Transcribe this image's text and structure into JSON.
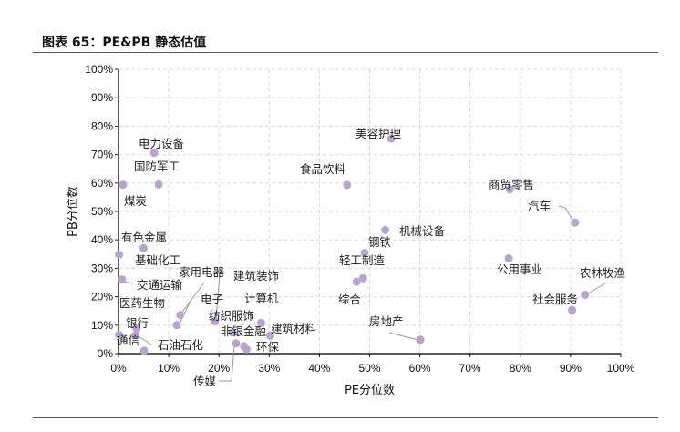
{
  "title": "图表 65：PE&PB 静态估值",
  "chart_data": {
    "type": "scatter",
    "title": "图表 65：PE&PB 静态估值",
    "xlabel": "PE分位数",
    "ylabel": "PB分位数",
    "xlim": [
      0,
      100
    ],
    "ylim": [
      0,
      100
    ],
    "x_ticks": [
      "0%",
      "10%",
      "20%",
      "30%",
      "40%",
      "50%",
      "60%",
      "70%",
      "80%",
      "90%",
      "100%"
    ],
    "y_ticks": [
      "0%",
      "10%",
      "20%",
      "30%",
      "40%",
      "50%",
      "60%",
      "70%",
      "80%",
      "90%",
      "100%"
    ],
    "grid": true,
    "marker_color": "#b9a3d3",
    "points": [
      {
        "name": "电力设备",
        "x": 7.1,
        "y": 70.6
      },
      {
        "name": "国防军工",
        "x": 8.0,
        "y": 59.5
      },
      {
        "name": "煤炭",
        "x": 0.9,
        "y": 59.4
      },
      {
        "name": "食品饮料",
        "x": 45.5,
        "y": 59.3
      },
      {
        "name": "美容护理",
        "x": 54.3,
        "y": 75.6
      },
      {
        "name": "商贸零售",
        "x": 77.9,
        "y": 57.8
      },
      {
        "name": "汽车",
        "x": 90.9,
        "y": 46.1
      },
      {
        "name": "机械设备",
        "x": 53.1,
        "y": 43.5
      },
      {
        "name": "钢铁",
        "x": 49.0,
        "y": 35.4
      },
      {
        "name": "轻工制造",
        "x": 48.7,
        "y": 26.5
      },
      {
        "name": "综合",
        "x": 47.4,
        "y": 25.3
      },
      {
        "name": "公用事业",
        "x": 77.7,
        "y": 33.5
      },
      {
        "name": "农林牧渔",
        "x": 92.9,
        "y": 20.7
      },
      {
        "name": "社会服务",
        "x": 90.3,
        "y": 15.3
      },
      {
        "name": "房地产",
        "x": 60.1,
        "y": 4.9
      },
      {
        "name": "有色金属",
        "x": 0.1,
        "y": 34.8
      },
      {
        "name": "基础化工",
        "x": 5.0,
        "y": 37.1
      },
      {
        "name": "交通运输",
        "x": 0.7,
        "y": 26.1
      },
      {
        "name": "医药生物",
        "x": 3.6,
        "y": 8.8
      },
      {
        "name": "银行",
        "x": 3.4,
        "y": 6.5
      },
      {
        "name": "通信",
        "x": 0.1,
        "y": 6.6
      },
      {
        "name": "石油石化",
        "x": 5.1,
        "y": 1.0
      },
      {
        "name": "家用电器",
        "x": 12.3,
        "y": 13.6
      },
      {
        "name": "电子",
        "x": 11.6,
        "y": 10.0
      },
      {
        "name": "建筑装饰",
        "x": 19.2,
        "y": 11.3
      },
      {
        "name": "纺织服饰",
        "x": 25.0,
        "y": 2.6
      },
      {
        "name": "计算机",
        "x": 28.4,
        "y": 10.8
      },
      {
        "name": "非银金融",
        "x": 22.7,
        "y": 7.4
      },
      {
        "name": "建筑材料",
        "x": 30.2,
        "y": 6.3
      },
      {
        "name": "环保",
        "x": 25.5,
        "y": 1.5
      },
      {
        "name": "传媒",
        "x": 23.4,
        "y": 3.6
      }
    ]
  }
}
